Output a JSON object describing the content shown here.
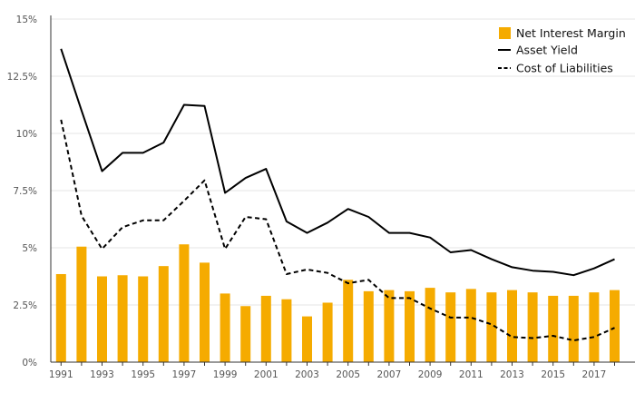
{
  "chart_data": {
    "type": "bar",
    "title": "",
    "xlabel": "",
    "ylabel": "",
    "ylim": [
      0,
      15
    ],
    "y_ticks": [
      "0%",
      "2.5%",
      "5%",
      "7.5%",
      "10%",
      "12.5%",
      "15%"
    ],
    "x": [
      1991,
      1992,
      1993,
      1994,
      1995,
      1996,
      1997,
      1998,
      1999,
      2000,
      2001,
      2002,
      2003,
      2004,
      2005,
      2006,
      2007,
      2008,
      2009,
      2010,
      2011,
      2012,
      2013,
      2014,
      2015,
      2016,
      2017,
      2018
    ],
    "x_tick_labels": [
      "1991",
      "1993",
      "1995",
      "1997",
      "1999",
      "2001",
      "2003",
      "2005",
      "2007",
      "2009",
      "2011",
      "2013",
      "2015",
      "2017"
    ],
    "grid": true,
    "legend_position": "top-right",
    "series": [
      {
        "name": "Net Interest Margin",
        "kind": "bar",
        "color": "#f5ab00",
        "values": [
          3.85,
          5.05,
          3.75,
          3.8,
          3.75,
          4.2,
          5.15,
          4.35,
          3.0,
          2.45,
          2.9,
          2.75,
          2.0,
          2.6,
          3.6,
          3.1,
          3.15,
          3.1,
          3.25,
          3.05,
          3.2,
          3.05,
          3.15,
          3.05,
          2.9,
          2.9,
          3.05,
          3.15
        ]
      },
      {
        "name": "Asset Yield",
        "kind": "line",
        "style": "solid",
        "color": "#000000",
        "values": [
          13.7,
          11.0,
          8.35,
          9.15,
          9.15,
          9.6,
          11.25,
          11.2,
          7.4,
          8.05,
          8.45,
          6.15,
          5.65,
          6.1,
          6.7,
          6.35,
          5.65,
          5.65,
          5.45,
          4.8,
          4.9,
          4.5,
          4.15,
          4.0,
          3.95,
          3.8,
          4.1,
          4.5
        ]
      },
      {
        "name": "Cost of Liabilities",
        "kind": "line",
        "style": "dashed",
        "color": "#000000",
        "values": [
          10.6,
          6.4,
          4.95,
          5.9,
          6.2,
          6.2,
          7.05,
          7.95,
          4.95,
          6.35,
          6.25,
          3.85,
          4.05,
          3.9,
          3.45,
          3.6,
          2.8,
          2.8,
          2.35,
          1.95,
          1.95,
          1.65,
          1.1,
          1.05,
          1.15,
          0.95,
          1.1,
          1.5
        ]
      }
    ]
  }
}
